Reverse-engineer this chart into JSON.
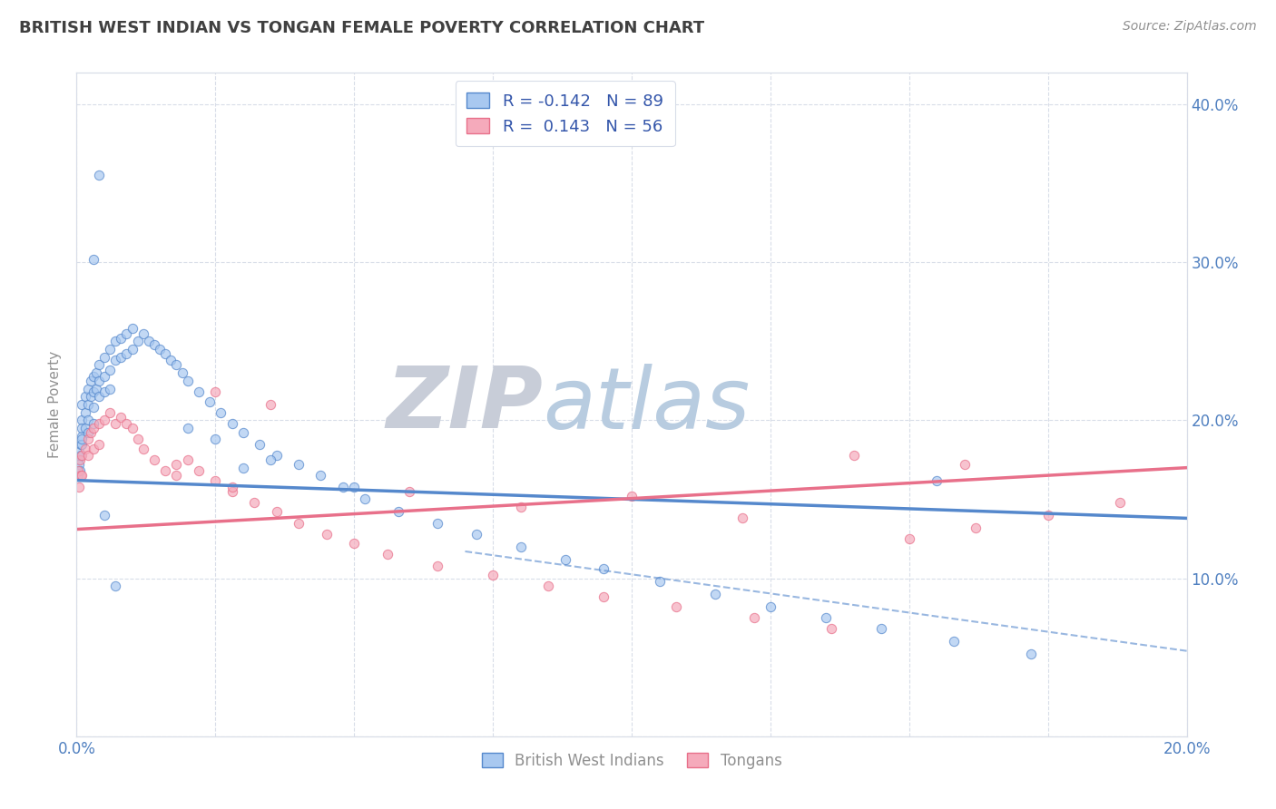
{
  "title": "BRITISH WEST INDIAN VS TONGAN FEMALE POVERTY CORRELATION CHART",
  "source_text": "Source: ZipAtlas.com",
  "ylabel": "Female Poverty",
  "xlim": [
    0.0,
    0.2
  ],
  "ylim": [
    0.0,
    0.42
  ],
  "bwi_R": -0.142,
  "bwi_N": 89,
  "tongan_R": 0.143,
  "tongan_N": 56,
  "bwi_color": "#a8c8f0",
  "tongan_color": "#f5aabb",
  "bwi_line_color": "#5588cc",
  "tongan_line_color": "#e8708a",
  "legend_label_bwi": "British West Indians",
  "legend_label_tongan": "Tongans",
  "watermark_zip": "ZIP",
  "watermark_atlas": "atlas",
  "watermark_color_zip": "#c8cdd8",
  "watermark_color_atlas": "#b8cce0",
  "background_color": "#ffffff",
  "grid_color": "#d8dde8",
  "title_color": "#404040",
  "tick_color": "#5080c0",
  "bwi_line_y0": 0.162,
  "bwi_line_y1": 0.138,
  "tongan_line_y0": 0.131,
  "tongan_line_y1": 0.17,
  "bwi_scatter_x": [
    0.0002,
    0.0003,
    0.0004,
    0.0005,
    0.0006,
    0.0007,
    0.0008,
    0.0009,
    0.001,
    0.001,
    0.001,
    0.001,
    0.001,
    0.0015,
    0.0015,
    0.0015,
    0.002,
    0.002,
    0.002,
    0.002,
    0.0025,
    0.0025,
    0.003,
    0.003,
    0.003,
    0.003,
    0.0035,
    0.0035,
    0.004,
    0.004,
    0.004,
    0.005,
    0.005,
    0.005,
    0.006,
    0.006,
    0.006,
    0.007,
    0.007,
    0.008,
    0.008,
    0.009,
    0.009,
    0.01,
    0.01,
    0.011,
    0.012,
    0.013,
    0.014,
    0.015,
    0.016,
    0.017,
    0.018,
    0.019,
    0.02,
    0.022,
    0.024,
    0.026,
    0.028,
    0.03,
    0.033,
    0.036,
    0.04,
    0.044,
    0.048,
    0.052,
    0.058,
    0.065,
    0.072,
    0.08,
    0.088,
    0.095,
    0.105,
    0.115,
    0.125,
    0.135,
    0.145,
    0.158,
    0.172,
    0.155,
    0.02,
    0.03,
    0.05,
    0.025,
    0.035,
    0.004,
    0.003,
    0.005,
    0.007
  ],
  "bwi_scatter_y": [
    0.175,
    0.165,
    0.18,
    0.172,
    0.168,
    0.185,
    0.178,
    0.19,
    0.185,
    0.2,
    0.21,
    0.195,
    0.188,
    0.215,
    0.205,
    0.195,
    0.22,
    0.21,
    0.2,
    0.192,
    0.225,
    0.215,
    0.228,
    0.218,
    0.208,
    0.198,
    0.23,
    0.22,
    0.235,
    0.225,
    0.215,
    0.24,
    0.228,
    0.218,
    0.245,
    0.232,
    0.22,
    0.25,
    0.238,
    0.252,
    0.24,
    0.255,
    0.242,
    0.258,
    0.245,
    0.25,
    0.255,
    0.25,
    0.248,
    0.245,
    0.242,
    0.238,
    0.235,
    0.23,
    0.225,
    0.218,
    0.212,
    0.205,
    0.198,
    0.192,
    0.185,
    0.178,
    0.172,
    0.165,
    0.158,
    0.15,
    0.142,
    0.135,
    0.128,
    0.12,
    0.112,
    0.106,
    0.098,
    0.09,
    0.082,
    0.075,
    0.068,
    0.06,
    0.052,
    0.162,
    0.195,
    0.17,
    0.158,
    0.188,
    0.175,
    0.355,
    0.302,
    0.14,
    0.095
  ],
  "tongan_scatter_x": [
    0.0002,
    0.0004,
    0.0006,
    0.0008,
    0.001,
    0.001,
    0.0015,
    0.002,
    0.002,
    0.0025,
    0.003,
    0.003,
    0.004,
    0.004,
    0.005,
    0.006,
    0.007,
    0.008,
    0.009,
    0.01,
    0.011,
    0.012,
    0.014,
    0.016,
    0.018,
    0.02,
    0.022,
    0.025,
    0.028,
    0.032,
    0.036,
    0.04,
    0.045,
    0.05,
    0.056,
    0.065,
    0.075,
    0.085,
    0.095,
    0.108,
    0.122,
    0.136,
    0.15,
    0.162,
    0.175,
    0.188,
    0.025,
    0.035,
    0.018,
    0.028,
    0.06,
    0.08,
    0.1,
    0.12,
    0.14,
    0.16
  ],
  "tongan_scatter_y": [
    0.168,
    0.158,
    0.175,
    0.165,
    0.178,
    0.165,
    0.182,
    0.188,
    0.178,
    0.192,
    0.195,
    0.182,
    0.198,
    0.185,
    0.2,
    0.205,
    0.198,
    0.202,
    0.198,
    0.195,
    0.188,
    0.182,
    0.175,
    0.168,
    0.172,
    0.175,
    0.168,
    0.162,
    0.155,
    0.148,
    0.142,
    0.135,
    0.128,
    0.122,
    0.115,
    0.108,
    0.102,
    0.095,
    0.088,
    0.082,
    0.075,
    0.068,
    0.125,
    0.132,
    0.14,
    0.148,
    0.218,
    0.21,
    0.165,
    0.158,
    0.155,
    0.145,
    0.152,
    0.138,
    0.178,
    0.172
  ]
}
